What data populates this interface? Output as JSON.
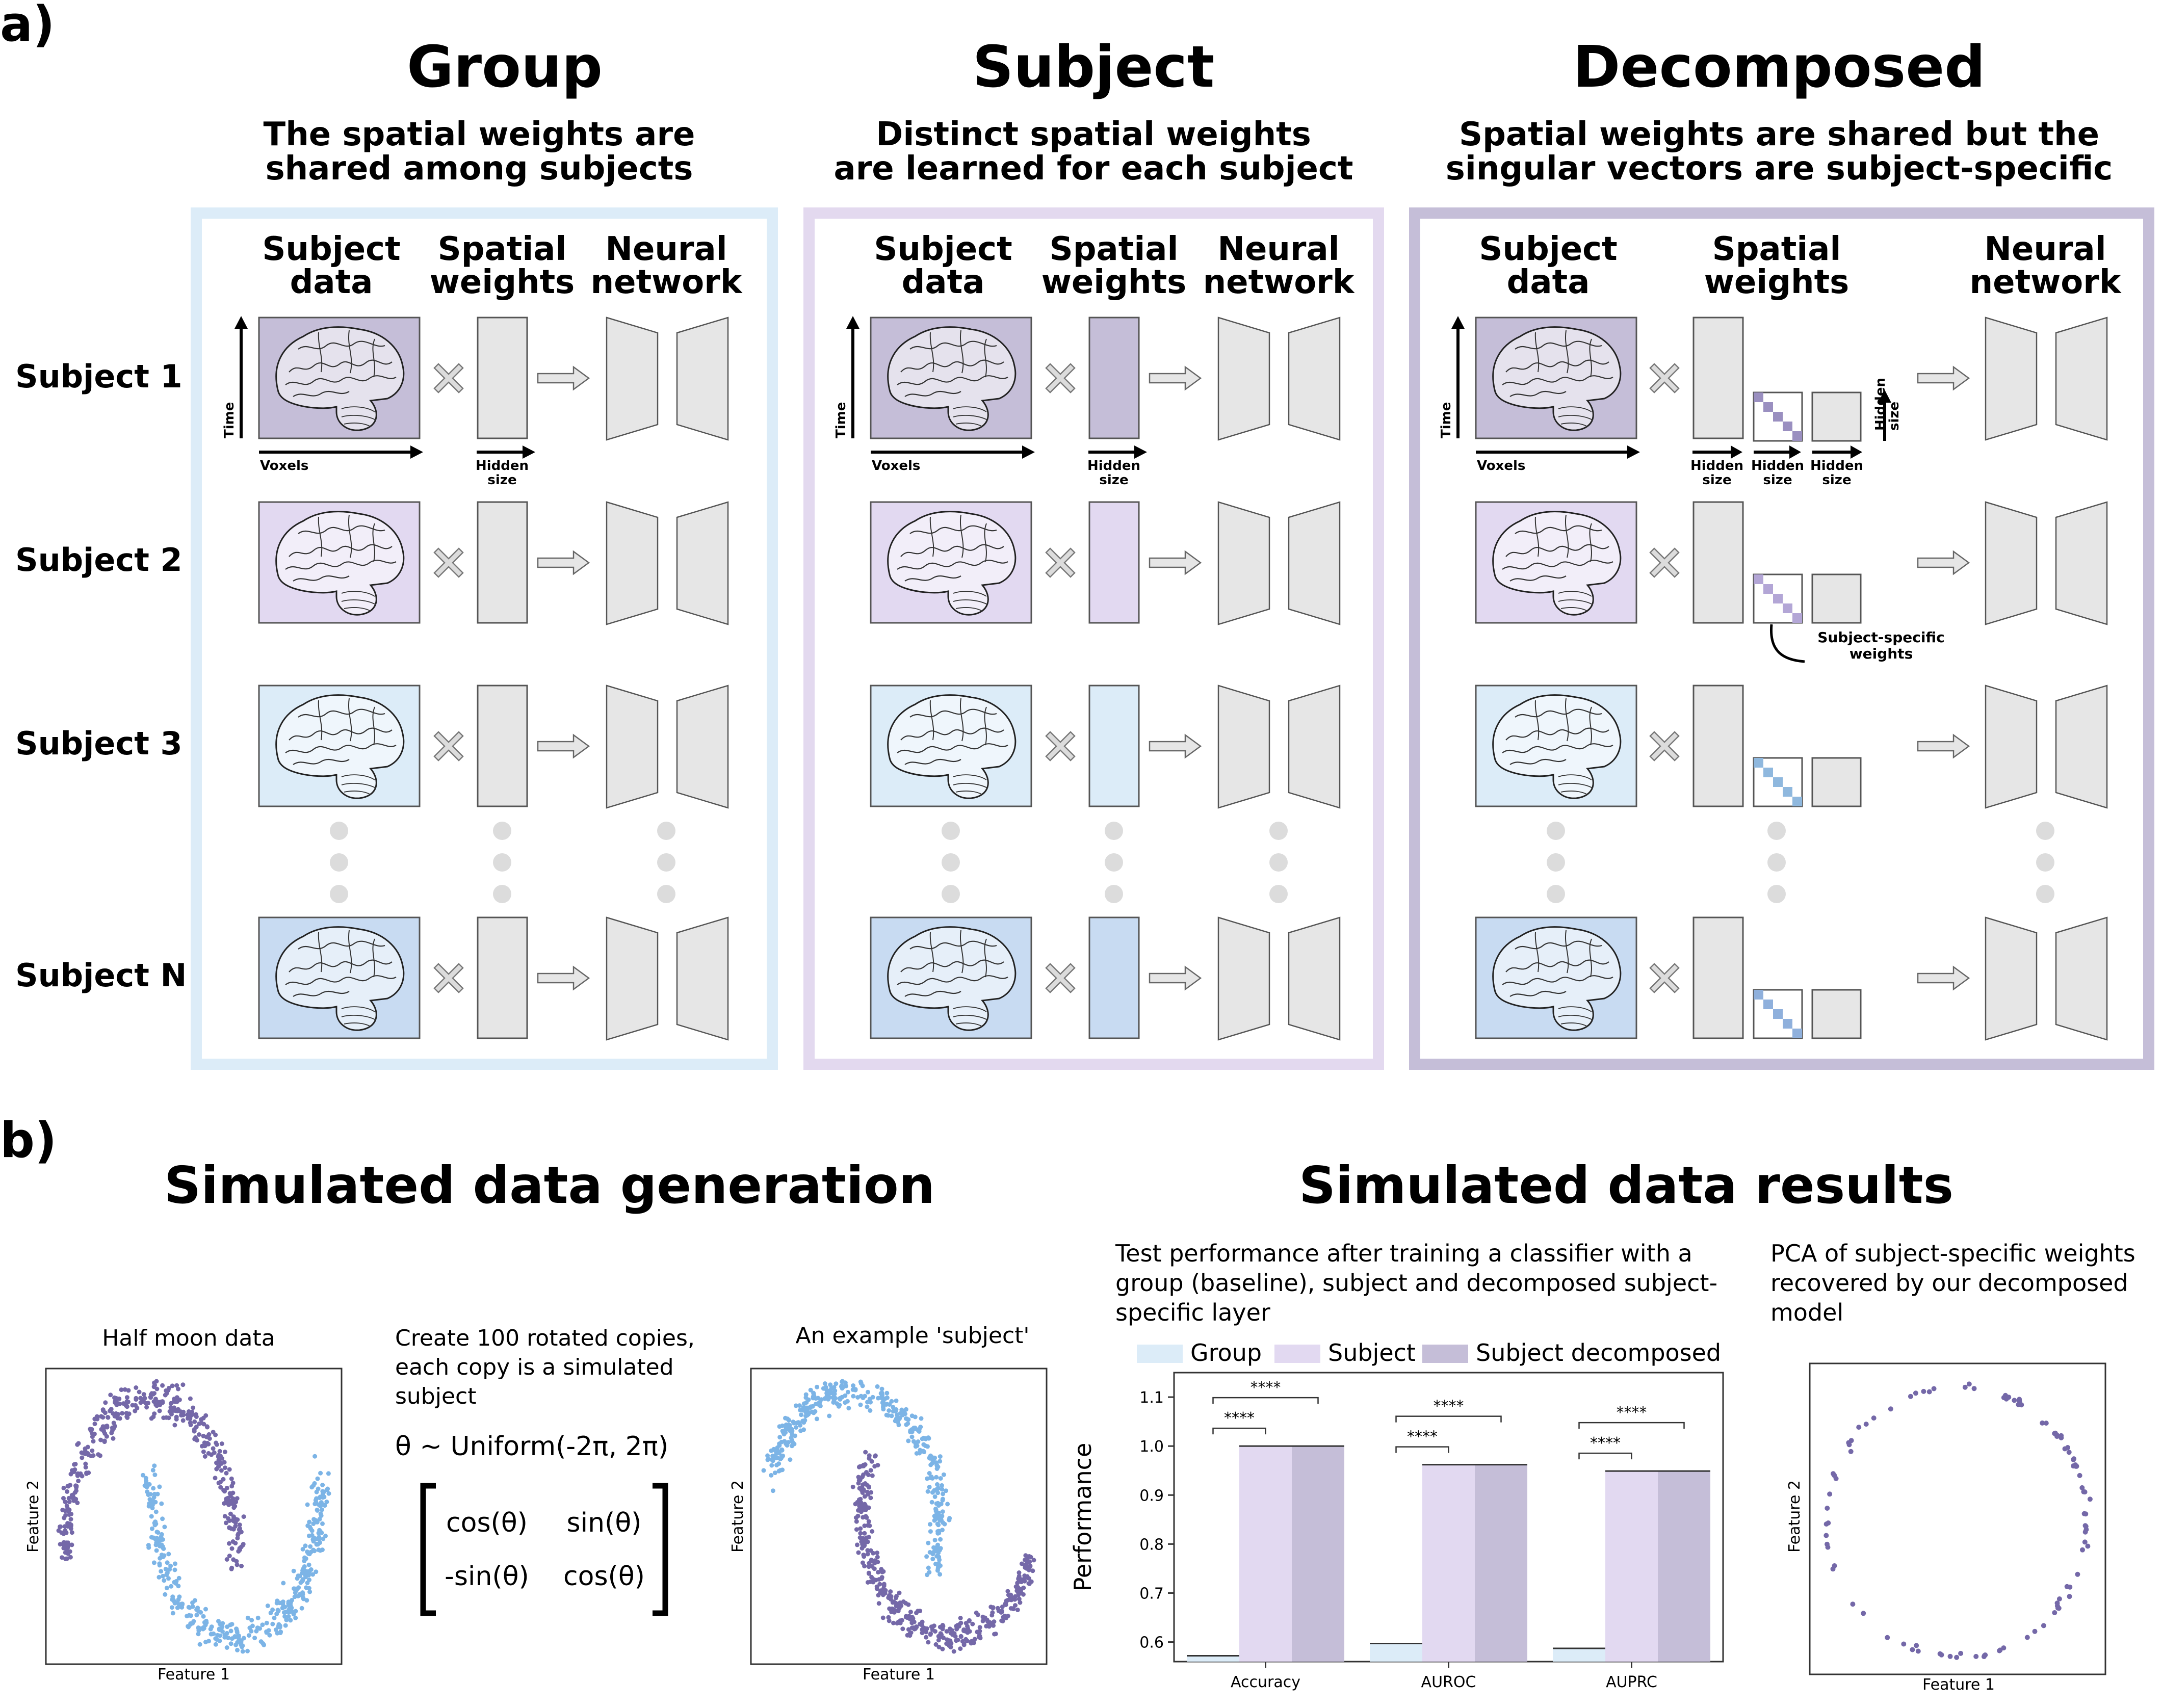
{
  "panel_a": {
    "tag": "a)",
    "rows": [
      "Subject 1",
      "Subject 2",
      "Subject 3",
      "Subject N"
    ],
    "panels": [
      {
        "title": "Group",
        "subtitle": [
          "The spatial weights are",
          "shared among subjects"
        ],
        "col_headers": [
          [
            "Subject",
            "data"
          ],
          [
            "Spatial",
            "weights"
          ],
          [
            "Neural",
            "network"
          ]
        ],
        "border_color": "#dcecf8",
        "weight_fills": [
          "#e6e6e6",
          "#e6e6e6",
          "#e6e6e6",
          "#e6e6e6"
        ]
      },
      {
        "title": "Subject",
        "subtitle": [
          "Distinct spatial weights",
          "are learned for each subject"
        ],
        "col_headers": [
          [
            "Subject",
            "data"
          ],
          [
            "Spatial",
            "weights"
          ],
          [
            "Neural",
            "network"
          ]
        ],
        "border_color": "#e3d9ef",
        "weight_fills": [
          "#c5bed8",
          "#e2d9f1",
          "#dcecf8",
          "#c8dbf2"
        ]
      },
      {
        "title": "Decomposed",
        "subtitle": [
          "Spatial weights are shared but the",
          "singular vectors are subject-specific"
        ],
        "col_headers": [
          [
            "Subject",
            "data"
          ],
          [
            "Spatial",
            "weights"
          ],
          [
            "Neural",
            "network"
          ]
        ],
        "border_color": "#c5bed8",
        "weight_fills": [
          "#e6e6e6",
          "#e6e6e6",
          "#e6e6e6",
          "#e6e6e6"
        ]
      }
    ],
    "axis_labels": {
      "time": "Time",
      "voxels": "Voxels",
      "hidden": [
        "Hidden",
        "size"
      ]
    },
    "callout": [
      "Subject-specific",
      "weights"
    ],
    "brain_fills": [
      "#c5bed8",
      "#e2d9f1",
      "#dcecf8",
      "#c8dbf2"
    ],
    "diag_colors": [
      "#9a8fc0",
      "#b3a6d6",
      "#8fb8de",
      "#8fb0dc"
    ]
  },
  "panel_b": {
    "tag": "b)",
    "gen_title": "Simulated data generation",
    "res_title": "Simulated data results",
    "half_moon": {
      "title": "Half moon data",
      "xlabel": "Feature 1",
      "ylabel": "Feature 2"
    },
    "rotation_text": [
      "Create 100 rotated copies,",
      "each copy is a simulated",
      "subject"
    ],
    "formula": "θ ~ Uniform(-2π, 2π)",
    "matrix": [
      [
        "cos(θ)",
        "sin(θ)"
      ],
      [
        "-sin(θ)",
        "cos(θ)"
      ]
    ],
    "example": {
      "title": "An example 'subject'",
      "xlabel": "Feature 1",
      "ylabel": "Feature 2"
    },
    "bar_desc": [
      "Test performance after training a classifier with a",
      "group (baseline), subject and decomposed subject-",
      "specific layer"
    ],
    "pca_desc": [
      "PCA of subject-specific weights",
      "recovered by our decomposed",
      "model"
    ],
    "pca": {
      "xlabel": "Feature 1",
      "ylabel": "Feature 2"
    },
    "significance": "****",
    "colors": {
      "dark": "#7468a8",
      "light": "#7cb4e6",
      "group": "#dcecf8",
      "subject": "#e2d9f1",
      "decomposed": "#c5bed8"
    }
  },
  "chart_data": {
    "type": "bar",
    "ylabel": "Performance",
    "categories": [
      "Accuracy",
      "AUROC",
      "AUPRC"
    ],
    "ylim": [
      0.56,
      1.15
    ],
    "yticks": [
      "0.6",
      "0.7",
      "0.8",
      "0.9",
      "1.0",
      "1.1"
    ],
    "series": [
      {
        "name": "Group",
        "values": [
          0.572,
          0.597,
          0.587
        ],
        "color": "#dcecf8"
      },
      {
        "name": "Subject",
        "values": [
          1.0,
          0.962,
          0.949
        ],
        "color": "#e2d9f1"
      },
      {
        "name": "Subject decomposed",
        "values": [
          1.0,
          0.962,
          0.949
        ],
        "color": "#c5bed8"
      }
    ],
    "legend": "top"
  }
}
